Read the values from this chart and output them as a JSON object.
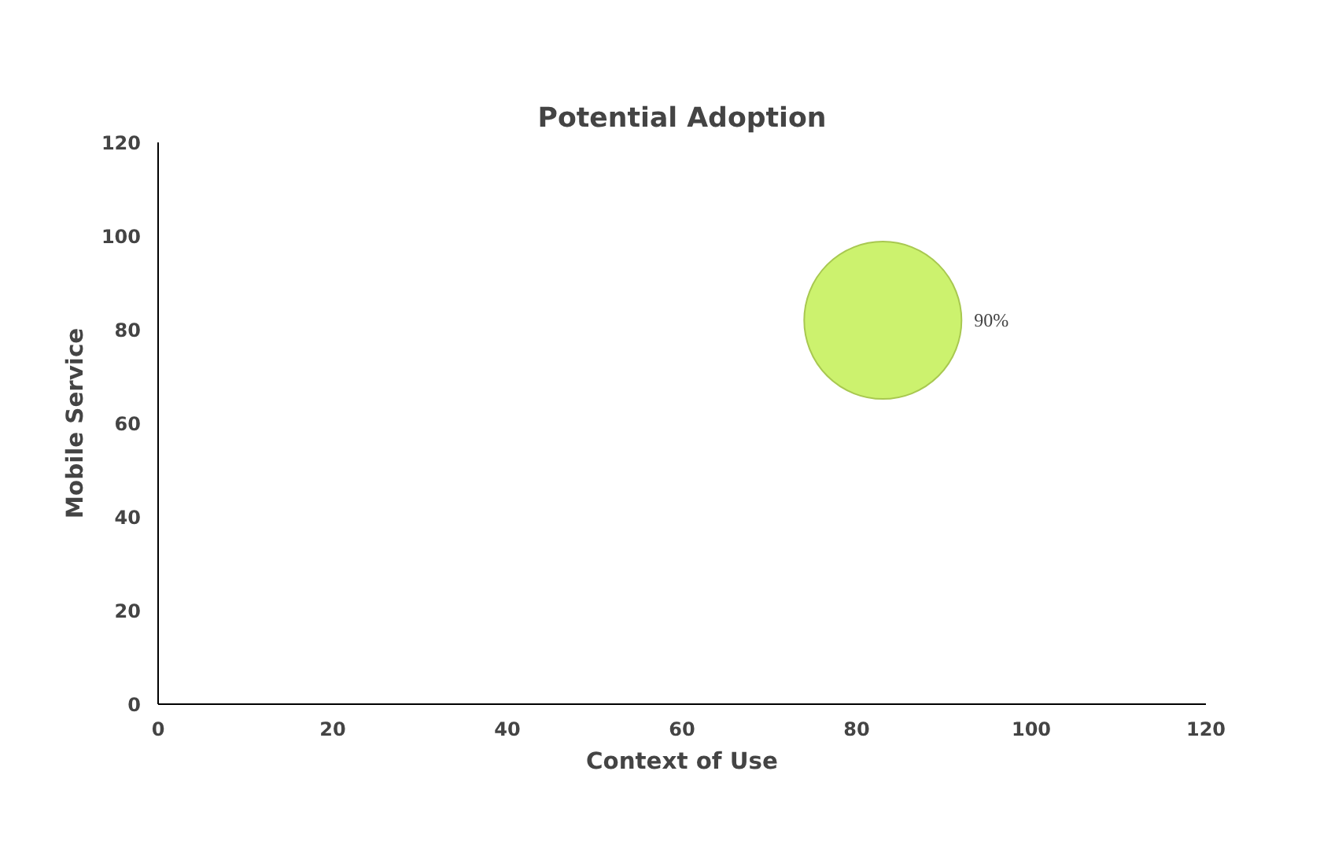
{
  "chart_data": {
    "type": "bubble",
    "title": "Potential Adoption",
    "xlabel": "Context of Use",
    "ylabel": "Mobile Service",
    "x": [
      83
    ],
    "values": [
      82
    ],
    "sizes": [
      1
    ],
    "color": "#ccf26e",
    "annotations": [
      "90%"
    ],
    "xlim": [
      0,
      120
    ],
    "xticks": [
      0,
      20,
      40,
      60,
      80,
      100,
      120
    ],
    "ylim": [
      0,
      120
    ],
    "yticks": [
      0,
      20,
      40,
      60,
      80,
      100,
      120
    ],
    "grid": false
  }
}
